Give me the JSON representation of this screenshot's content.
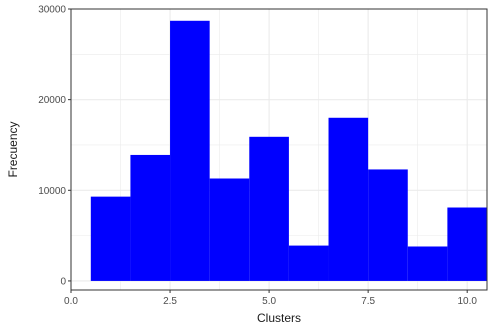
{
  "chart_data": {
    "type": "bar",
    "subtype": "histogram",
    "title": "",
    "xlabel": "Clusters",
    "ylabel": "Frecuency",
    "xlim": [
      0,
      10.5
    ],
    "ylim": [
      -1000,
      30000
    ],
    "x_ticks": [
      0,
      2.5,
      5,
      7.5,
      10
    ],
    "x_tick_labels": [
      "0.0",
      "2.5",
      "5.0",
      "7.5",
      "10.0"
    ],
    "y_ticks": [
      0,
      10000,
      20000,
      30000
    ],
    "y_tick_labels": [
      "0",
      "10000",
      "20000",
      "30000"
    ],
    "bin_width": 1,
    "bins": [
      {
        "center": 1,
        "value": 9300
      },
      {
        "center": 2,
        "value": 13900
      },
      {
        "center": 3,
        "value": 28700
      },
      {
        "center": 4,
        "value": 11300
      },
      {
        "center": 5,
        "value": 15900
      },
      {
        "center": 6,
        "value": 3900
      },
      {
        "center": 7,
        "value": 18000
      },
      {
        "center": 8,
        "value": 12300
      },
      {
        "center": 9,
        "value": 3800
      },
      {
        "center": 10,
        "value": 8100
      }
    ],
    "grid": true,
    "bar_color": "#0000ff",
    "grid_color": "#ebebeb",
    "panel_border_color": "#333333"
  }
}
